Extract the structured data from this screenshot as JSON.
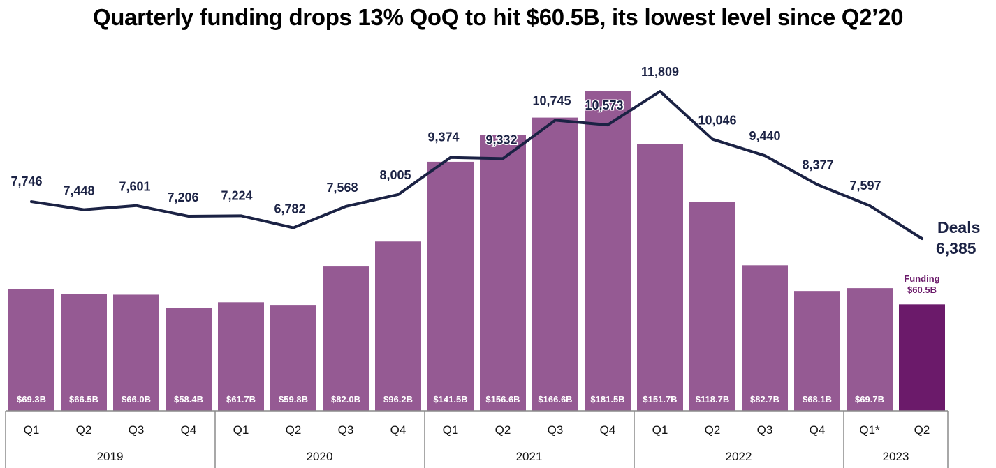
{
  "chart_data": {
    "type": "bar+line",
    "title": "Quarterly funding drops 13% QoQ to hit $60.5B, its lowest level since Q2’20",
    "categories": [
      "Q1",
      "Q2",
      "Q3",
      "Q4",
      "Q1",
      "Q2",
      "Q3",
      "Q4",
      "Q1",
      "Q2",
      "Q3",
      "Q4",
      "Q1",
      "Q2",
      "Q3",
      "Q4",
      "Q1*",
      "Q2"
    ],
    "years": [
      {
        "label": "2019",
        "span": 4
      },
      {
        "label": "2020",
        "span": 4
      },
      {
        "label": "2021",
        "span": 4
      },
      {
        "label": "2022",
        "span": 4
      },
      {
        "label": "2023",
        "span": 2
      }
    ],
    "series": [
      {
        "name": "Funding",
        "type": "bar",
        "unit": "$B",
        "values": [
          69.3,
          66.5,
          66.0,
          58.4,
          61.7,
          59.8,
          82.0,
          96.2,
          141.5,
          156.6,
          166.6,
          181.5,
          151.7,
          118.7,
          82.7,
          68.1,
          69.7,
          60.5
        ],
        "labels": [
          "$69.3B",
          "$66.5B",
          "$66.0B",
          "$58.4B",
          "$61.7B",
          "$59.8B",
          "$82.0B",
          "$96.2B",
          "$141.5B",
          "$156.6B",
          "$166.6B",
          "$181.5B",
          "$151.7B",
          "$118.7B",
          "$82.7B",
          "$68.1B",
          "$69.7B",
          ""
        ],
        "color": "#955a93",
        "highlight_color": "#6b1a6a"
      },
      {
        "name": "Deals",
        "type": "line",
        "values": [
          7746,
          7448,
          7601,
          7206,
          7224,
          6782,
          7568,
          8005,
          9374,
          9332,
          10745,
          10573,
          11809,
          10046,
          9440,
          8377,
          7597,
          6385
        ],
        "labels": [
          "7,746",
          "7,448",
          "7,601",
          "7,206",
          "7,224",
          "6,782",
          "7,568",
          "8,005",
          "9,374",
          "9,332",
          "10,745",
          "10,573",
          "11,809",
          "10,046",
          "9,440",
          "8,377",
          "7,597",
          ""
        ],
        "color": "#1b2244"
      }
    ],
    "annotations": {
      "deals_name": "Deals",
      "deals_last": "6,385",
      "funding_name": "Funding",
      "funding_last": "$60.5B"
    },
    "bar_ylim": [
      0,
      200
    ],
    "line_ylim": [
      0,
      13000
    ],
    "grid": false,
    "legend": "none"
  }
}
